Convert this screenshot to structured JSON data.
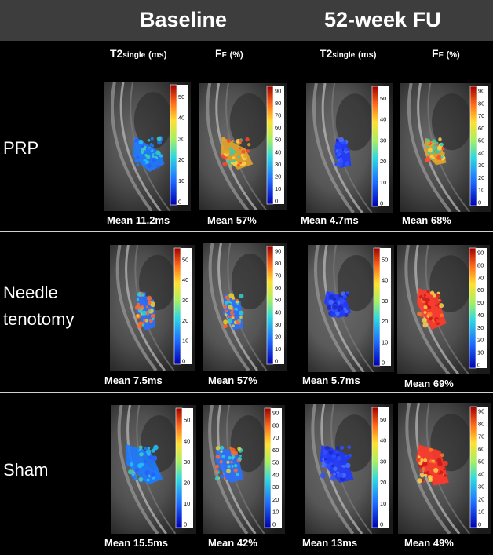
{
  "header": {
    "baseline": "Baseline",
    "followup": "52-week FU"
  },
  "columns": [
    {
      "main": "T2",
      "sub": "single",
      "unit": "(ms)"
    },
    {
      "main": "F",
      "sub": "F",
      "unit": "(%)"
    },
    {
      "main": "T2",
      "sub": "single",
      "unit": "(ms)"
    },
    {
      "main": "F",
      "sub": "F",
      "unit": "(%)"
    }
  ],
  "colorbars": {
    "t2_ticks": [
      "50",
      "40",
      "30",
      "20",
      "10",
      "0"
    ],
    "ff_ticks": [
      "90",
      "80",
      "70",
      "60",
      "50",
      "40",
      "30",
      "20",
      "10",
      "0"
    ]
  },
  "rows": [
    {
      "label": [
        "PRP"
      ],
      "means": [
        "Mean 11.2ms",
        "Mean 57%",
        "Mean 4.7ms",
        "Mean 68%"
      ]
    },
    {
      "label": [
        "Needle",
        "tenotomy"
      ],
      "means": [
        "Mean 7.5ms",
        "Mean 57%",
        "Mean 5.7ms",
        "Mean 69%"
      ]
    },
    {
      "label": [
        "Sham"
      ],
      "means": [
        "Mean 15.5ms",
        "Mean 42%",
        "Mean 13ms",
        "Mean 49%"
      ]
    }
  ],
  "colors": {
    "header_bg": "#3d3d3d",
    "divider": "#cfcfcf",
    "background": "#000000"
  }
}
